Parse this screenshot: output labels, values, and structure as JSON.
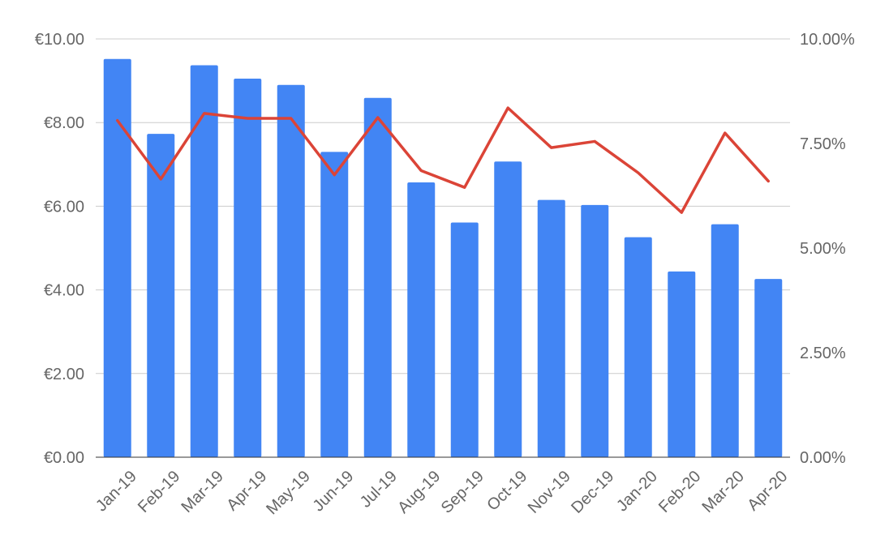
{
  "chart_data": {
    "type": "bar",
    "title": "",
    "xlabel": "",
    "ylabel": "",
    "y2label": "",
    "categories": [
      "Jan-19",
      "Feb-19",
      "Mar-19",
      "Apr-19",
      "May-19",
      "Jun-19",
      "Jul-19",
      "Aug-19",
      "Sep-19",
      "Oct-19",
      "Nov-19",
      "Dec-19",
      "Jan-20",
      "Feb-20",
      "Mar-20",
      "Apr-20"
    ],
    "series": [
      {
        "type": "bar",
        "axis": "left",
        "color": "#4285f4",
        "values": [
          9.52,
          7.73,
          9.37,
          9.05,
          8.9,
          7.3,
          8.59,
          6.57,
          5.61,
          7.07,
          6.15,
          6.03,
          5.26,
          4.44,
          5.57,
          4.26
        ]
      },
      {
        "type": "line",
        "axis": "right",
        "color": "#db4437",
        "values": [
          8.05,
          6.65,
          8.22,
          8.1,
          8.1,
          6.75,
          8.12,
          6.85,
          6.45,
          8.35,
          7.4,
          7.55,
          6.8,
          5.85,
          7.75,
          6.6
        ]
      }
    ],
    "ylim": [
      0,
      10
    ],
    "y_ticks": [
      "€0.00",
      "€2.00",
      "€4.00",
      "€6.00",
      "€8.00",
      "€10.00"
    ],
    "y2lim": [
      0,
      10
    ],
    "y2_ticks": [
      "0.00%",
      "2.50%",
      "5.00%",
      "7.50%",
      "10.00%"
    ],
    "grid": true,
    "legend": "none"
  }
}
